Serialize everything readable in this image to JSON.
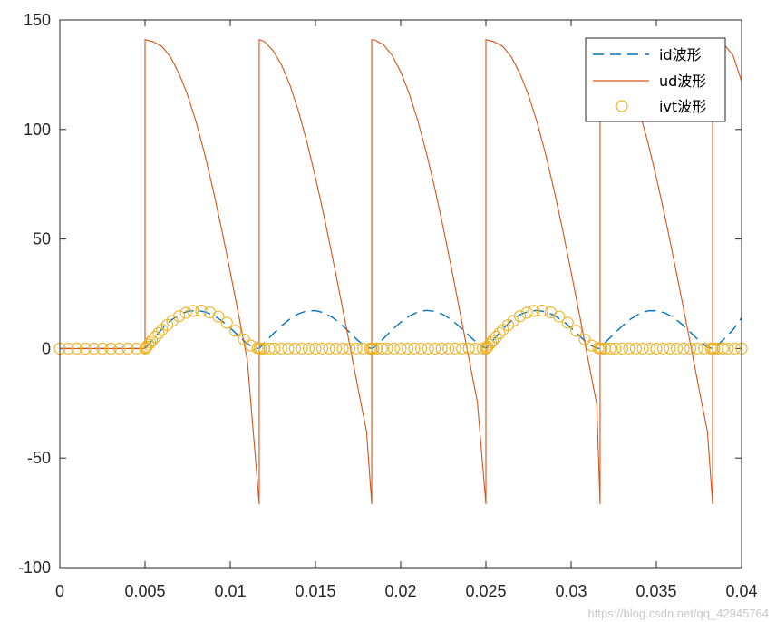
{
  "chart_data": {
    "type": "line",
    "xlim": [
      0,
      0.04
    ],
    "ylim": [
      -100,
      150
    ],
    "xticks": [
      "0",
      "0.005",
      "0.01",
      "0.015",
      "0.02",
      "0.025",
      "0.03",
      "0.035",
      "0.04"
    ],
    "xtick_values": [
      0,
      0.005,
      0.01,
      0.015,
      0.02,
      0.025,
      0.03,
      0.035,
      0.04
    ],
    "yticks": [
      "-100",
      "-50",
      "0",
      "50",
      "100",
      "150"
    ],
    "ytick_values": [
      -100,
      -50,
      0,
      50,
      100,
      150
    ],
    "grid": false,
    "legend_position": "top-right",
    "series": [
      {
        "name": "id波形",
        "style": "dashed",
        "color": "#0072BD",
        "x": [
          0,
          0.005,
          0.0055,
          0.006,
          0.0065,
          0.007,
          0.0075,
          0.008,
          0.0085,
          0.009,
          0.0095,
          0.01,
          0.0105,
          0.011,
          0.0115,
          0.0117,
          0.012,
          0.0125,
          0.013,
          0.0135,
          0.014,
          0.0145,
          0.015,
          0.0155,
          0.016,
          0.0165,
          0.017,
          0.0175,
          0.018,
          0.0183,
          0.0185,
          0.019,
          0.0195,
          0.02,
          0.0205,
          0.021,
          0.0215,
          0.022,
          0.0225,
          0.023,
          0.0235,
          0.024,
          0.0245,
          0.025,
          0.0255,
          0.026,
          0.0265,
          0.027,
          0.0275,
          0.028,
          0.0285,
          0.029,
          0.0295,
          0.03,
          0.0305,
          0.031,
          0.0315,
          0.0317,
          0.032,
          0.0325,
          0.033,
          0.0335,
          0.034,
          0.0345,
          0.035,
          0.0355,
          0.036,
          0.0365,
          0.037,
          0.0375,
          0.038,
          0.0383,
          0.0385,
          0.039,
          0.0395,
          0.04
        ],
        "y": [
          0,
          0,
          4.5,
          9,
          12.7,
          15.5,
          17,
          17.4,
          16.8,
          15.2,
          12.7,
          9.4,
          5.7,
          2.1,
          0.2,
          0,
          2.7,
          6.6,
          10.3,
          13.5,
          15.9,
          17.2,
          17.3,
          16.3,
          14.2,
          11.1,
          7.4,
          3.6,
          0.6,
          0,
          0.8,
          4.6,
          8.6,
          12,
          14.8,
          16.7,
          17.4,
          17,
          15.5,
          13,
          9.7,
          6,
          2.4,
          0,
          4.5,
          9,
          12.7,
          15.5,
          17,
          17.4,
          16.8,
          15.2,
          12.7,
          9.4,
          5.7,
          2.1,
          0.2,
          0,
          2.7,
          6.6,
          10.3,
          13.5,
          15.9,
          17.2,
          17.3,
          16.3,
          14.2,
          11.1,
          7.4,
          3.6,
          0.6,
          0,
          0.8,
          4.6,
          8.6,
          14
        ]
      },
      {
        "name": "ud波形",
        "style": "solid",
        "color": "#D95319",
        "x": [
          0,
          0.005,
          0.005,
          0.0055,
          0.006,
          0.0065,
          0.007,
          0.0075,
          0.008,
          0.0085,
          0.009,
          0.0095,
          0.01,
          0.0105,
          0.011,
          0.0117,
          0.0117,
          0.012,
          0.0125,
          0.013,
          0.0135,
          0.014,
          0.0145,
          0.015,
          0.0155,
          0.016,
          0.0165,
          0.017,
          0.0175,
          0.018,
          0.0183,
          0.0183,
          0.0185,
          0.019,
          0.0195,
          0.02,
          0.0205,
          0.021,
          0.0215,
          0.022,
          0.0225,
          0.023,
          0.0235,
          0.024,
          0.0245,
          0.025,
          0.025,
          0.0255,
          0.026,
          0.0265,
          0.027,
          0.0275,
          0.028,
          0.0285,
          0.029,
          0.0295,
          0.03,
          0.0305,
          0.031,
          0.0315,
          0.0317,
          0.0317,
          0.032,
          0.0325,
          0.033,
          0.0335,
          0.034,
          0.0345,
          0.035,
          0.0355,
          0.036,
          0.0365,
          0.037,
          0.0375,
          0.038,
          0.0383,
          0.0383,
          0.0385,
          0.039,
          0.0395,
          0.04
        ],
        "y": [
          0,
          0,
          141,
          140,
          137.8,
          133,
          125.5,
          115.6,
          103.3,
          88.8,
          72.3,
          54.3,
          35,
          15,
          -5.2,
          -71,
          141,
          140.2,
          136.1,
          129.6,
          120.3,
          108.4,
          94.2,
          78.1,
          60.5,
          41.6,
          22,
          2,
          -18.3,
          -38.1,
          -71,
          141,
          140.8,
          138.6,
          133.8,
          126.3,
          116.4,
          104.1,
          89.6,
          73.2,
          55.1,
          35.8,
          15.8,
          -4.4,
          -24.4,
          -71,
          141,
          140,
          137.8,
          133,
          125.5,
          115.6,
          103.3,
          88.8,
          72.3,
          54.3,
          35,
          15,
          -5.2,
          -25.3,
          -71,
          141,
          140.2,
          136.1,
          129.6,
          120.3,
          108.4,
          94.2,
          78.1,
          60.5,
          41.6,
          22,
          2,
          -18.3,
          -38.1,
          -71,
          141,
          140.8,
          138.6,
          133.8,
          122
        ]
      },
      {
        "name": "ivt波形",
        "style": "markers",
        "marker": "circle",
        "color": "#EDB120",
        "x": [
          0,
          0.0005,
          0.001,
          0.0015,
          0.002,
          0.0025,
          0.003,
          0.0035,
          0.004,
          0.0045,
          0.005,
          0.00505,
          0.0051,
          0.0052,
          0.0053,
          0.0054,
          0.0056,
          0.0058,
          0.006,
          0.0063,
          0.0066,
          0.007,
          0.0074,
          0.0078,
          0.0083,
          0.0088,
          0.0093,
          0.0098,
          0.0103,
          0.0108,
          0.0112,
          0.0116,
          0.0117,
          0.0118,
          0.012,
          0.0123,
          0.0126,
          0.013,
          0.0134,
          0.0138,
          0.0142,
          0.0146,
          0.015,
          0.0154,
          0.0158,
          0.0162,
          0.0166,
          0.017,
          0.0174,
          0.0178,
          0.0182,
          0.0183,
          0.0184,
          0.0186,
          0.0189,
          0.0192,
          0.0196,
          0.02,
          0.0204,
          0.0208,
          0.0212,
          0.0216,
          0.022,
          0.0224,
          0.0228,
          0.0232,
          0.0236,
          0.024,
          0.0244,
          0.0248,
          0.025,
          0.02505,
          0.0251,
          0.0252,
          0.0253,
          0.0254,
          0.0256,
          0.0258,
          0.026,
          0.0263,
          0.0266,
          0.027,
          0.0274,
          0.0278,
          0.0283,
          0.0288,
          0.0293,
          0.0298,
          0.0303,
          0.0308,
          0.0312,
          0.0316,
          0.0317,
          0.0318,
          0.032,
          0.0323,
          0.0326,
          0.033,
          0.0334,
          0.0338,
          0.0342,
          0.0346,
          0.035,
          0.0354,
          0.0358,
          0.0362,
          0.0366,
          0.037,
          0.0374,
          0.0378,
          0.0382,
          0.0383,
          0.0384,
          0.0386,
          0.0389,
          0.0392,
          0.0396,
          0.04
        ],
        "y": [
          0,
          0,
          0,
          0,
          0,
          0,
          0,
          0,
          0,
          0,
          0,
          0.4,
          0.9,
          1.8,
          2.7,
          3.6,
          5.3,
          7,
          8.6,
          10.7,
          12.6,
          14.8,
          16.3,
          17.2,
          17.3,
          16.5,
          14.6,
          11.8,
          8.1,
          4.2,
          1.4,
          0.2,
          0,
          0,
          0,
          0,
          0,
          0,
          0,
          0,
          0,
          0,
          0,
          0,
          0,
          0,
          0,
          0,
          0,
          0,
          0,
          0,
          0,
          0,
          0,
          0,
          0,
          0,
          0,
          0,
          0,
          0,
          0,
          0,
          0,
          0,
          0,
          0,
          0,
          0,
          0,
          0.4,
          0.9,
          1.8,
          2.7,
          3.6,
          5.3,
          7,
          8.6,
          10.7,
          12.6,
          14.8,
          16.3,
          17.2,
          17.3,
          16.5,
          14.6,
          11.8,
          8.1,
          4.2,
          1.4,
          0.2,
          0,
          0,
          0,
          0,
          0,
          0,
          0,
          0,
          0,
          0,
          0,
          0,
          0,
          0,
          0,
          0,
          0,
          0,
          0,
          0,
          0,
          0,
          0,
          0,
          0,
          0
        ]
      }
    ]
  },
  "watermark": "https://blog.csdn.net/qq_42945764"
}
